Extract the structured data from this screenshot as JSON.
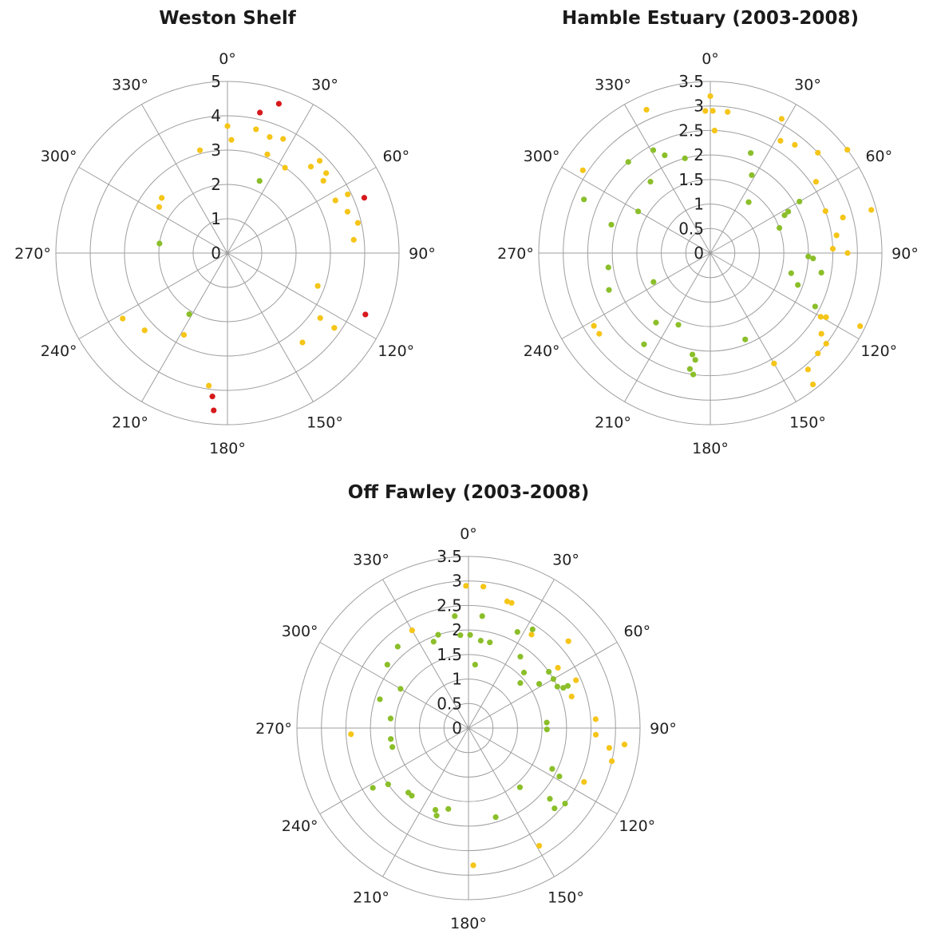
{
  "colors": {
    "yellow": "#f5c518",
    "green": "#8bbf2a",
    "red": "#d7191c",
    "grid": "#9e9e9e",
    "text": "#222222"
  },
  "chart_data": [
    {
      "type": "scatter",
      "subtype": "polar",
      "title": "Weston Shelf",
      "radial_ticks": [
        "0",
        "1",
        "2",
        "3",
        "4",
        "5"
      ],
      "r_max": 5,
      "angle_labels": [
        "0°",
        "30°",
        "60°",
        "90°",
        "120°",
        "150°",
        "180°",
        "210°",
        "240°",
        "270°",
        "300°",
        "330°"
      ],
      "grid": true,
      "points": [
        {
          "theta": 0,
          "r": 3.7,
          "color": "yellow"
        },
        {
          "theta": 2,
          "r": 3.3,
          "color": "yellow"
        },
        {
          "theta": 345,
          "r": 3.1,
          "color": "yellow"
        },
        {
          "theta": 310,
          "r": 2.5,
          "color": "yellow"
        },
        {
          "theta": 304,
          "r": 2.4,
          "color": "yellow"
        },
        {
          "theta": 278,
          "r": 2.0,
          "color": "green"
        },
        {
          "theta": 13,
          "r": 3.7,
          "color": "yellow"
        },
        {
          "theta": 20,
          "r": 3.6,
          "color": "yellow"
        },
        {
          "theta": 13,
          "r": 4.2,
          "color": "red"
        },
        {
          "theta": 19,
          "r": 4.6,
          "color": "red"
        },
        {
          "theta": 26,
          "r": 3.7,
          "color": "yellow"
        },
        {
          "theta": 22,
          "r": 3.1,
          "color": "yellow"
        },
        {
          "theta": 34,
          "r": 3.0,
          "color": "yellow"
        },
        {
          "theta": 24,
          "r": 2.3,
          "color": "green"
        },
        {
          "theta": 44,
          "r": 3.5,
          "color": "yellow"
        },
        {
          "theta": 45,
          "r": 3.8,
          "color": "yellow"
        },
        {
          "theta": 51,
          "r": 3.7,
          "color": "yellow"
        },
        {
          "theta": 53,
          "r": 3.5,
          "color": "yellow"
        },
        {
          "theta": 64,
          "r": 3.5,
          "color": "yellow"
        },
        {
          "theta": 64,
          "r": 3.9,
          "color": "yellow"
        },
        {
          "theta": 71,
          "r": 3.7,
          "color": "yellow"
        },
        {
          "theta": 68,
          "r": 4.3,
          "color": "red"
        },
        {
          "theta": 77,
          "r": 3.9,
          "color": "yellow"
        },
        {
          "theta": 84,
          "r": 3.7,
          "color": "yellow"
        },
        {
          "theta": 110,
          "r": 2.8,
          "color": "yellow"
        },
        {
          "theta": 114,
          "r": 4.4,
          "color": "red"
        },
        {
          "theta": 125,
          "r": 3.3,
          "color": "yellow"
        },
        {
          "theta": 125,
          "r": 3.8,
          "color": "yellow"
        },
        {
          "theta": 140,
          "r": 3.4,
          "color": "yellow"
        },
        {
          "theta": 188,
          "r": 3.9,
          "color": "yellow"
        },
        {
          "theta": 186,
          "r": 4.2,
          "color": "red"
        },
        {
          "theta": 185,
          "r": 4.6,
          "color": "red"
        },
        {
          "theta": 208,
          "r": 2.7,
          "color": "yellow"
        },
        {
          "theta": 212,
          "r": 2.1,
          "color": "green"
        },
        {
          "theta": 227,
          "r": 3.3,
          "color": "yellow"
        },
        {
          "theta": 238,
          "r": 3.6,
          "color": "yellow"
        }
      ]
    },
    {
      "type": "scatter",
      "subtype": "polar",
      "title": "Hamble Estuary (2003-2008)",
      "radial_ticks": [
        "0",
        "0.5",
        "1",
        "1.5",
        "2",
        "2.5",
        "3",
        "3.5"
      ],
      "r_max": 3.5,
      "angle_labels": [
        "0°",
        "30°",
        "60°",
        "90°",
        "120°",
        "150°",
        "180°",
        "210°",
        "240°",
        "270°",
        "300°",
        "330°"
      ],
      "grid": true,
      "points": [
        {
          "theta": 0,
          "r": 3.2,
          "color": "yellow"
        },
        {
          "theta": 358,
          "r": 2.9,
          "color": "yellow"
        },
        {
          "theta": 1,
          "r": 2.9,
          "color": "yellow"
        },
        {
          "theta": 2,
          "r": 2.5,
          "color": "yellow"
        },
        {
          "theta": 345,
          "r": 2.0,
          "color": "green"
        },
        {
          "theta": 7,
          "r": 2.9,
          "color": "yellow"
        },
        {
          "theta": 28,
          "r": 3.1,
          "color": "yellow"
        },
        {
          "theta": 32,
          "r": 2.7,
          "color": "yellow"
        },
        {
          "theta": 38,
          "r": 2.8,
          "color": "yellow"
        },
        {
          "theta": 47,
          "r": 3.0,
          "color": "yellow"
        },
        {
          "theta": 53,
          "r": 3.5,
          "color": "yellow"
        },
        {
          "theta": 56,
          "r": 2.6,
          "color": "yellow"
        },
        {
          "theta": 37,
          "r": 1.3,
          "color": "green"
        },
        {
          "theta": 22,
          "r": 2.2,
          "color": "green"
        },
        {
          "theta": 28,
          "r": 1.8,
          "color": "green"
        },
        {
          "theta": 60,
          "r": 2.1,
          "color": "green"
        },
        {
          "theta": 62,
          "r": 1.8,
          "color": "green"
        },
        {
          "theta": 63,
          "r": 1.7,
          "color": "green"
        },
        {
          "theta": 70,
          "r": 1.5,
          "color": "green"
        },
        {
          "theta": 75,
          "r": 2.8,
          "color": "yellow"
        },
        {
          "theta": 70,
          "r": 2.5,
          "color": "yellow"
        },
        {
          "theta": 75,
          "r": 3.4,
          "color": "yellow"
        },
        {
          "theta": 82,
          "r": 2.6,
          "color": "yellow"
        },
        {
          "theta": 88,
          "r": 2.5,
          "color": "yellow"
        },
        {
          "theta": 90,
          "r": 2.8,
          "color": "yellow"
        },
        {
          "theta": 92,
          "r": 2.0,
          "color": "green"
        },
        {
          "theta": 93,
          "r": 2.1,
          "color": "green"
        },
        {
          "theta": 100,
          "r": 2.3,
          "color": "green"
        },
        {
          "theta": 104,
          "r": 1.7,
          "color": "green"
        },
        {
          "theta": 110,
          "r": 1.9,
          "color": "green"
        },
        {
          "theta": 117,
          "r": 2.4,
          "color": "green"
        },
        {
          "theta": 119,
          "r": 2.7,
          "color": "yellow"
        },
        {
          "theta": 120,
          "r": 2.6,
          "color": "yellow"
        },
        {
          "theta": 116,
          "r": 3.4,
          "color": "yellow"
        },
        {
          "theta": 126,
          "r": 2.8,
          "color": "yellow"
        },
        {
          "theta": 128,
          "r": 3.0,
          "color": "yellow"
        },
        {
          "theta": 133,
          "r": 3.0,
          "color": "yellow"
        },
        {
          "theta": 140,
          "r": 3.1,
          "color": "yellow"
        },
        {
          "theta": 142,
          "r": 3.4,
          "color": "yellow"
        },
        {
          "theta": 150,
          "r": 2.6,
          "color": "yellow"
        },
        {
          "theta": 158,
          "r": 1.9,
          "color": "green"
        },
        {
          "theta": 188,
          "r": 2.2,
          "color": "green"
        },
        {
          "theta": 190,
          "r": 2.1,
          "color": "green"
        },
        {
          "theta": 188,
          "r": 2.5,
          "color": "green"
        },
        {
          "theta": 190,
          "r": 2.4,
          "color": "green"
        },
        {
          "theta": 204,
          "r": 1.6,
          "color": "green"
        },
        {
          "theta": 218,
          "r": 1.8,
          "color": "green"
        },
        {
          "theta": 216,
          "r": 2.3,
          "color": "green"
        },
        {
          "theta": 238,
          "r": 2.8,
          "color": "yellow"
        },
        {
          "theta": 234,
          "r": 2.8,
          "color": "yellow"
        },
        {
          "theta": 243,
          "r": 1.3,
          "color": "green"
        },
        {
          "theta": 250,
          "r": 2.2,
          "color": "green"
        },
        {
          "theta": 262,
          "r": 2.1,
          "color": "green"
        },
        {
          "theta": 286,
          "r": 2.1,
          "color": "green"
        },
        {
          "theta": 293,
          "r": 2.8,
          "color": "green"
        },
        {
          "theta": 303,
          "r": 3.1,
          "color": "yellow"
        },
        {
          "theta": 300,
          "r": 1.7,
          "color": "green"
        },
        {
          "theta": 318,
          "r": 2.5,
          "color": "green"
        },
        {
          "theta": 320,
          "r": 1.9,
          "color": "green"
        },
        {
          "theta": 331,
          "r": 2.4,
          "color": "green"
        },
        {
          "theta": 335,
          "r": 2.2,
          "color": "green"
        },
        {
          "theta": 336,
          "r": 3.2,
          "color": "yellow"
        }
      ]
    },
    {
      "type": "scatter",
      "subtype": "polar",
      "title": "Off Fawley (2003-2008)",
      "radial_ticks": [
        "0",
        "0.5",
        "1",
        "1.5",
        "2",
        "2.5",
        "3",
        "3.5"
      ],
      "r_max": 3.5,
      "angle_labels": [
        "0°",
        "30°",
        "60°",
        "90°",
        "120°",
        "150°",
        "180°",
        "210°",
        "240°",
        "270°",
        "300°",
        "330°"
      ],
      "grid": true,
      "points": [
        {
          "theta": 359,
          "r": 2.9,
          "color": "yellow"
        },
        {
          "theta": 6,
          "r": 2.9,
          "color": "yellow"
        },
        {
          "theta": 353,
          "r": 2.3,
          "color": "green"
        },
        {
          "theta": 355,
          "r": 1.9,
          "color": "green"
        },
        {
          "theta": 1,
          "r": 1.9,
          "color": "green"
        },
        {
          "theta": 7,
          "r": 2.3,
          "color": "green"
        },
        {
          "theta": 8,
          "r": 1.8,
          "color": "green"
        },
        {
          "theta": 14,
          "r": 1.8,
          "color": "green"
        },
        {
          "theta": 6,
          "r": 1.3,
          "color": "green"
        },
        {
          "theta": 17,
          "r": 2.7,
          "color": "yellow"
        },
        {
          "theta": 19,
          "r": 2.7,
          "color": "yellow"
        },
        {
          "theta": 34,
          "r": 2.3,
          "color": "yellow"
        },
        {
          "theta": 49,
          "r": 2.7,
          "color": "yellow"
        },
        {
          "theta": 27,
          "r": 2.2,
          "color": "green"
        },
        {
          "theta": 33,
          "r": 2.4,
          "color": "green"
        },
        {
          "theta": 36,
          "r": 1.8,
          "color": "green"
        },
        {
          "theta": 45,
          "r": 1.6,
          "color": "green"
        },
        {
          "theta": 49,
          "r": 1.4,
          "color": "green"
        },
        {
          "theta": 55,
          "r": 2.0,
          "color": "green"
        },
        {
          "theta": 56,
          "r": 2.2,
          "color": "yellow"
        },
        {
          "theta": 60,
          "r": 2.0,
          "color": "green"
        },
        {
          "theta": 58,
          "r": 1.7,
          "color": "green"
        },
        {
          "theta": 65,
          "r": 2.0,
          "color": "green"
        },
        {
          "theta": 66,
          "r": 2.4,
          "color": "yellow"
        },
        {
          "theta": 67,
          "r": 2.2,
          "color": "green"
        },
        {
          "theta": 67,
          "r": 2.1,
          "color": "green"
        },
        {
          "theta": 73,
          "r": 2.2,
          "color": "yellow"
        },
        {
          "theta": 86,
          "r": 1.6,
          "color": "green"
        },
        {
          "theta": 91,
          "r": 1.6,
          "color": "green"
        },
        {
          "theta": 86,
          "r": 2.6,
          "color": "yellow"
        },
        {
          "theta": 93,
          "r": 2.6,
          "color": "yellow"
        },
        {
          "theta": 98,
          "r": 2.9,
          "color": "yellow"
        },
        {
          "theta": 96,
          "r": 3.2,
          "color": "yellow"
        },
        {
          "theta": 103,
          "r": 3.0,
          "color": "yellow"
        },
        {
          "theta": 115,
          "r": 2.6,
          "color": "yellow"
        },
        {
          "theta": 116,
          "r": 1.9,
          "color": "green"
        },
        {
          "theta": 118,
          "r": 2.1,
          "color": "green"
        },
        {
          "theta": 131,
          "r": 2.2,
          "color": "green"
        },
        {
          "theta": 128,
          "r": 2.5,
          "color": "green"
        },
        {
          "theta": 133,
          "r": 2.4,
          "color": "green"
        },
        {
          "theta": 139,
          "r": 1.6,
          "color": "green"
        },
        {
          "theta": 149,
          "r": 2.8,
          "color": "yellow"
        },
        {
          "theta": 163,
          "r": 1.9,
          "color": "green"
        },
        {
          "theta": 178,
          "r": 2.8,
          "color": "yellow"
        },
        {
          "theta": 194,
          "r": 1.7,
          "color": "green"
        },
        {
          "theta": 202,
          "r": 1.8,
          "color": "green"
        },
        {
          "theta": 200,
          "r": 1.9,
          "color": "green"
        },
        {
          "theta": 220,
          "r": 1.8,
          "color": "green"
        },
        {
          "theta": 223,
          "r": 1.8,
          "color": "green"
        },
        {
          "theta": 235,
          "r": 2.0,
          "color": "green"
        },
        {
          "theta": 238,
          "r": 2.3,
          "color": "green"
        },
        {
          "theta": 256,
          "r": 1.6,
          "color": "green"
        },
        {
          "theta": 262,
          "r": 1.6,
          "color": "green"
        },
        {
          "theta": 267,
          "r": 2.4,
          "color": "yellow"
        },
        {
          "theta": 277,
          "r": 1.6,
          "color": "green"
        },
        {
          "theta": 288,
          "r": 1.9,
          "color": "green"
        },
        {
          "theta": 300,
          "r": 1.6,
          "color": "green"
        },
        {
          "theta": 308,
          "r": 2.1,
          "color": "green"
        },
        {
          "theta": 319,
          "r": 2.2,
          "color": "green"
        },
        {
          "theta": 330,
          "r": 2.3,
          "color": "yellow"
        },
        {
          "theta": 338,
          "r": 1.9,
          "color": "green"
        },
        {
          "theta": 342,
          "r": 2.0,
          "color": "green"
        }
      ]
    }
  ]
}
